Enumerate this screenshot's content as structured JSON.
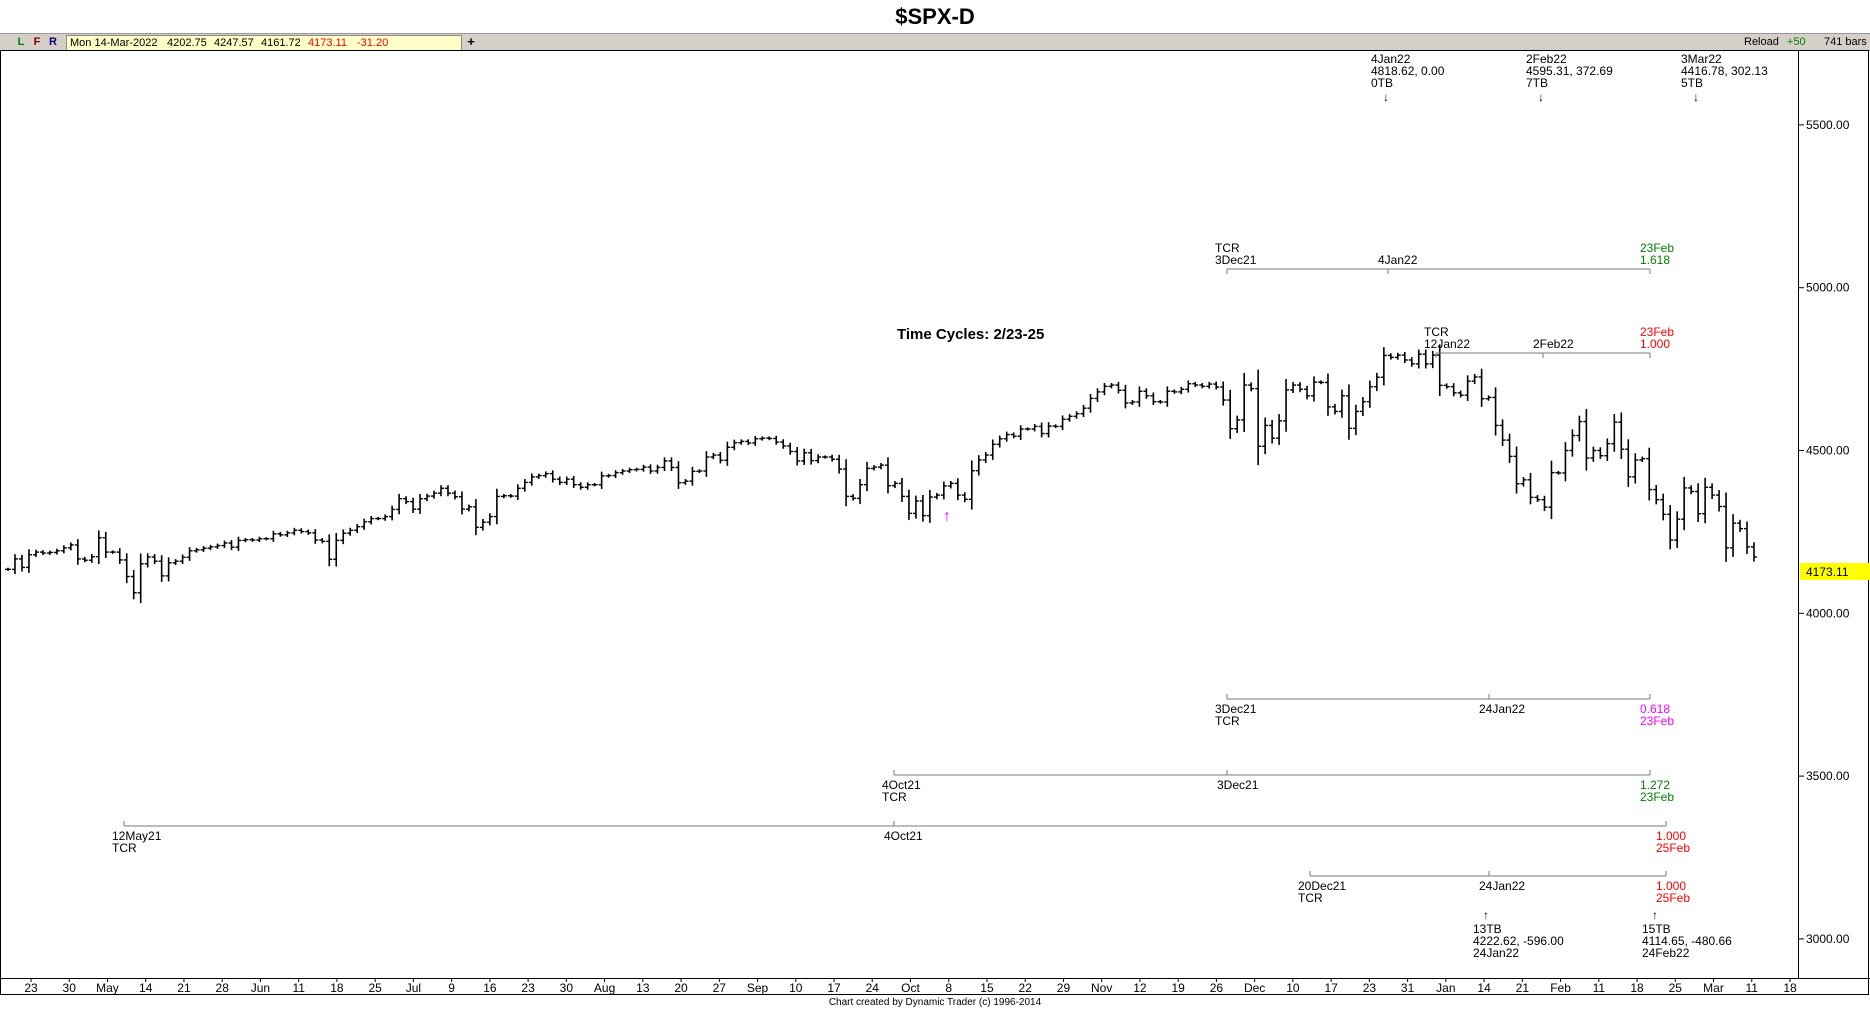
{
  "title": "$SPX-D",
  "toolbar": {
    "btn_l": "L",
    "btn_f": "F",
    "btn_r": "R",
    "date": "Mon 14-Mar-2022",
    "open": "4202.75",
    "high": "4247.57",
    "low": "4161.72",
    "close": "4173.11",
    "change": "-31.20",
    "plus": "+",
    "reload": "Reload",
    "plus50": "+50",
    "bars": "741 bars"
  },
  "annotation": {
    "time_cycles": "Time Cycles:  2/23-25",
    "up_arrow": "↑"
  },
  "price_label": "4173.11",
  "credit": "Chart created by Dynamic Trader  (c)  1996-2014",
  "colors": {
    "bars": "#000000",
    "green": "#008000",
    "red": "#ff0000",
    "magenta": "#ff00ff",
    "price_bg": "#ffff00",
    "toolbar": "#d4d0c8"
  },
  "pivots": [
    {
      "lines": [
        "4Jan22",
        "4818.62, 0.00",
        "0TB"
      ],
      "arrow": "↓"
    },
    {
      "lines": [
        "2Feb22",
        "4595.31, 372.69",
        "7TB"
      ],
      "arrow": "↓"
    },
    {
      "lines": [
        "3Mar22",
        "4416.78, 302.13",
        "5TB"
      ],
      "arrow": "↓"
    },
    {
      "lines": [
        "13TB",
        "4222.62, -596.00",
        "24Jan22"
      ],
      "arrow": "↑"
    },
    {
      "lines": [
        "15TB",
        "4114.65, -480.66",
        "24Feb22"
      ],
      "arrow": "↑"
    }
  ],
  "projections": [
    {
      "left": [
        "TCR",
        "3Dec21"
      ],
      "mid": "4Jan22",
      "right": [
        "23Feb",
        "1.618"
      ],
      "color": "#008000"
    },
    {
      "left": [
        "TCR",
        "12Jan22"
      ],
      "mid": "2Feb22",
      "right": [
        "23Feb",
        "1.000"
      ],
      "color": "#ff0000"
    },
    {
      "left": [
        "3Dec21",
        "TCR"
      ],
      "mid": "24Jan22",
      "right": [
        "0.618",
        "23Feb"
      ],
      "color": "#ff00ff"
    },
    {
      "left": [
        "4Oct21",
        "TCR"
      ],
      "mid": "3Dec21",
      "right": [
        "1.272",
        "23Feb"
      ],
      "color": "#008000"
    },
    {
      "left": [
        "12May21",
        "TCR"
      ],
      "mid": "4Oct21",
      "right": [
        "1.000",
        "25Feb"
      ],
      "color": "#ff0000"
    },
    {
      "left": [
        "20Dec21",
        "TCR"
      ],
      "mid": "24Jan22",
      "right": [
        "1.000",
        "25Feb"
      ],
      "color": "#ff0000"
    }
  ],
  "chart_data": {
    "type": "ohlc",
    "title": "$SPX-D",
    "ylim": [
      2880,
      5730
    ],
    "y_ticks": [
      "3000.00",
      "3500.00",
      "4000.00",
      "4500.00",
      "5000.00",
      "5500.00"
    ],
    "x_ticks": [
      "23",
      "30",
      "May",
      "14",
      "21",
      "28",
      "Jun",
      "11",
      "18",
      "25",
      "Jul",
      "9",
      "16",
      "23",
      "30",
      "Aug",
      "13",
      "20",
      "27",
      "Sep",
      "10",
      "17",
      "24",
      "Oct",
      "8",
      "15",
      "22",
      "29",
      "Nov",
      "12",
      "19",
      "26",
      "Dec",
      "10",
      "17",
      "23",
      "31",
      "Jan",
      "14",
      "21",
      "Feb",
      "11",
      "18",
      "25",
      "Mar",
      "11",
      "18"
    ],
    "closes": [
      4135,
      4167,
      4141,
      4180,
      4188,
      4185,
      4187,
      4192,
      4201,
      4210,
      4167,
      4163,
      4174,
      4232,
      4188,
      4188,
      4164,
      4113,
      4063,
      4152,
      4173,
      4160,
      4115,
      4155,
      4160,
      4172,
      4192,
      4195,
      4200,
      4204,
      4208,
      4216,
      4203,
      4224,
      4226,
      4225,
      4229,
      4229,
      4244,
      4241,
      4247,
      4255,
      4251,
      4247,
      4225,
      4221,
      4166,
      4224,
      4246,
      4255,
      4266,
      4281,
      4291,
      4291,
      4297,
      4319,
      4352,
      4343,
      4320,
      4352,
      4360,
      4369,
      4384,
      4369,
      4358,
      4320,
      4327,
      4264,
      4280,
      4297,
      4359,
      4361,
      4360,
      4384,
      4402,
      4419,
      4423,
      4429,
      4412,
      4402,
      4412,
      4395,
      4387,
      4395,
      4395,
      4422,
      4423,
      4432,
      4437,
      4441,
      4442,
      4449,
      4437,
      4448,
      4468,
      4448,
      4401,
      4406,
      4436,
      4437,
      4480,
      4486,
      4470,
      4510,
      4524,
      4528,
      4523,
      4536,
      4538,
      4537,
      4526,
      4514,
      4497,
      4468,
      4493,
      4469,
      4480,
      4480,
      4473,
      4443,
      4359,
      4353,
      4395,
      4445,
      4449,
      4455,
      4392,
      4399,
      4359,
      4307,
      4345,
      4300,
      4357,
      4363,
      4391,
      4399,
      4363,
      4350,
      4438,
      4471,
      4486,
      4519,
      4536,
      4549,
      4544,
      4566,
      4566,
      4574,
      4552,
      4575,
      4574,
      4596,
      4605,
      4613,
      4630,
      4660,
      4680,
      4697,
      4701,
      4685,
      4646,
      4649,
      4682,
      4668,
      4650,
      4649,
      4682,
      4680,
      4688,
      4705,
      4701,
      4697,
      4704,
      4695,
      4655,
      4567,
      4594,
      4701,
      4690,
      4513,
      4577,
      4538,
      4591,
      4686,
      4701,
      4688,
      4668,
      4710,
      4709,
      4634,
      4620,
      4668,
      4568,
      4620,
      4650,
      4696,
      4725,
      4792,
      4786,
      4793,
      4778,
      4766,
      4796,
      4766,
      4793,
      4700,
      4696,
      4677,
      4670,
      4713,
      4726,
      4659,
      4663,
      4577,
      4532,
      4482,
      4398,
      4410,
      4356,
      4349,
      4326,
      4432,
      4431,
      4500,
      4546,
      4589,
      4477,
      4500,
      4484,
      4521,
      4587,
      4504,
      4419,
      4471,
      4475,
      4380,
      4349,
      4304,
      4225,
      4289,
      4385,
      4374,
      4306,
      4387,
      4363,
      4328,
      4201,
      4277,
      4260,
      4204,
      4173
    ]
  }
}
